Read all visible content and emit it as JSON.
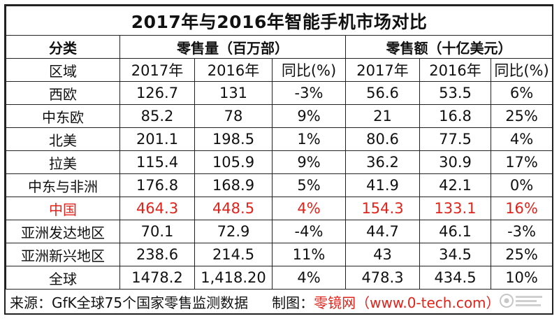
{
  "title": "2017年与2016年智能手机市场对比",
  "header": {
    "category": "分类",
    "volume_group": "零售量（百万部）",
    "value_group": "零售额（十亿美元）",
    "region": "区域",
    "year_2017": "2017年",
    "year_2016": "2016年",
    "yoy": "同比(%)"
  },
  "rows": [
    {
      "region": "西欧",
      "vol_2017": "126.7",
      "vol_2016": "131",
      "vol_yoy": "-3%",
      "val_2017": "56.6",
      "val_2016": "53.5",
      "val_yoy": "6%"
    },
    {
      "region": "中东欧",
      "vol_2017": "85.2",
      "vol_2016": "78",
      "vol_yoy": "9%",
      "val_2017": "21",
      "val_2016": "16.8",
      "val_yoy": "25%"
    },
    {
      "region": "北美",
      "vol_2017": "201.1",
      "vol_2016": "198.5",
      "vol_yoy": "1%",
      "val_2017": "80.6",
      "val_2016": "77.5",
      "val_yoy": "4%"
    },
    {
      "region": "拉美",
      "vol_2017": "115.4",
      "vol_2016": "105.9",
      "vol_yoy": "9%",
      "val_2017": "36.2",
      "val_2016": "30.9",
      "val_yoy": "17%"
    },
    {
      "region": "中东与非洲",
      "vol_2017": "176.8",
      "vol_2016": "168.9",
      "vol_yoy": "5%",
      "val_2017": "41.9",
      "val_2016": "42.1",
      "val_yoy": "0%"
    },
    {
      "region": "中国",
      "vol_2017": "464.3",
      "vol_2016": "448.5",
      "vol_yoy": "4%",
      "val_2017": "154.3",
      "val_2016": "133.1",
      "val_yoy": "16%"
    },
    {
      "region": "亚洲发达地区",
      "vol_2017": "70.1",
      "vol_2016": "72.9",
      "vol_yoy": "-4%",
      "val_2017": "44.7",
      "val_2016": "46.1",
      "val_yoy": "-3%"
    },
    {
      "region": "亚洲新兴地区",
      "vol_2017": "238.6",
      "vol_2016": "214.5",
      "vol_yoy": "11%",
      "val_2017": "43",
      "val_2016": "34.5",
      "val_yoy": "25%"
    },
    {
      "region": "全球",
      "vol_2017": "1478.2",
      "vol_2016": "1,418.20",
      "vol_yoy": "4%",
      "val_2017": "478.3",
      "val_2016": "434.5",
      "val_yoy": "10%"
    }
  ],
  "footer": {
    "source": "来源：GfK全球75个国家零售监测数据",
    "maker_label": "制图：",
    "maker_name": "零镜网（www.0-tech.com）"
  },
  "colors": {
    "highlight": "#e0241b",
    "border": "#222222"
  },
  "icons": {
    "watermark": "watermark-logo-icon"
  }
}
